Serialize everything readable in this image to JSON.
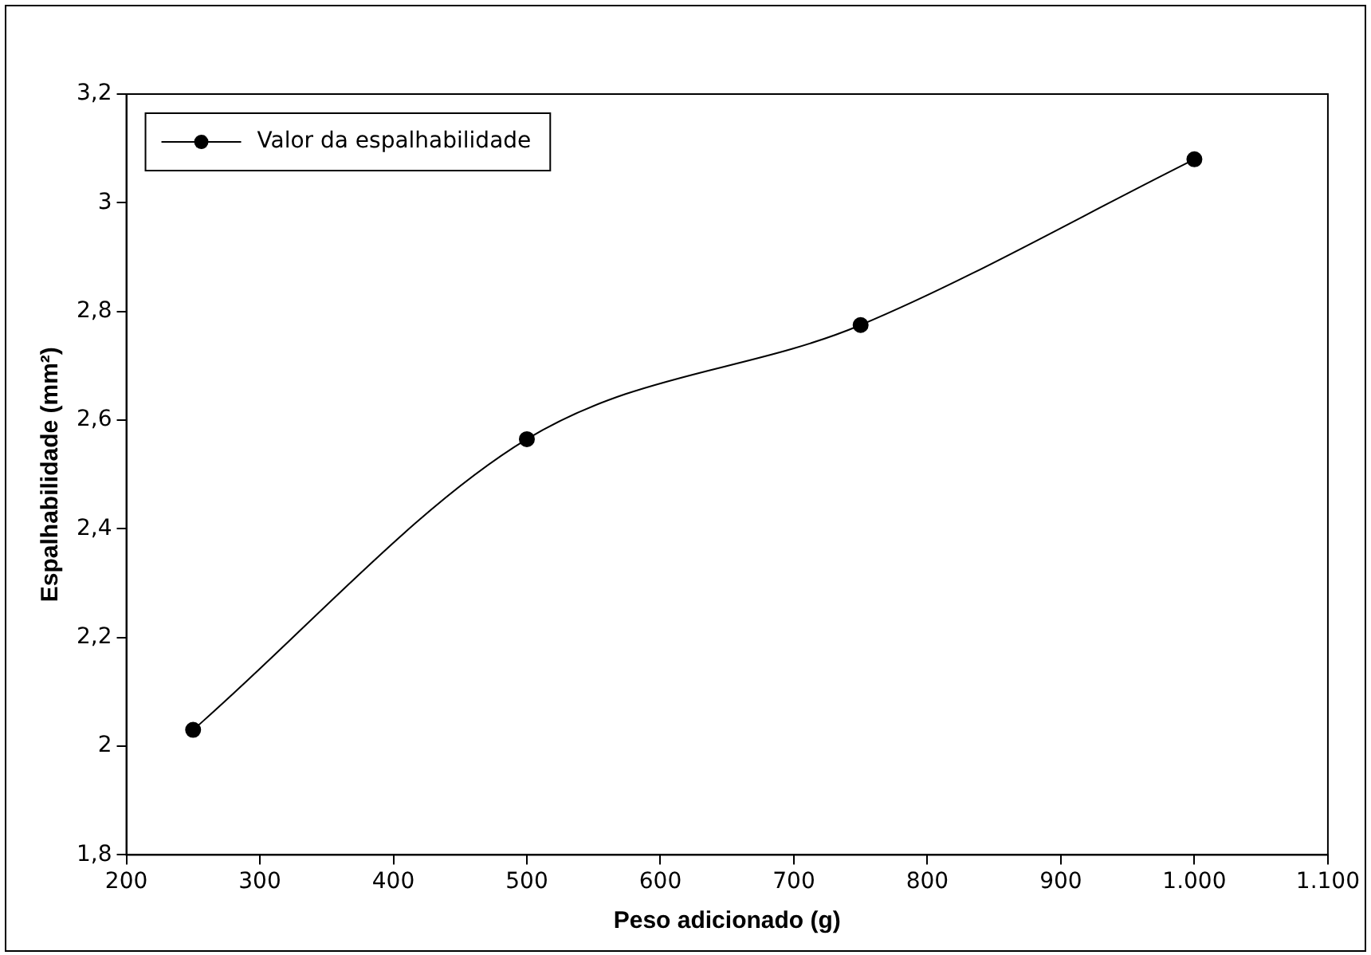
{
  "chart_data": {
    "type": "line",
    "xlabel": "Peso adicionado (g)",
    "ylabel": "Espalhabilidade (mm²)",
    "x": [
      250,
      500,
      750,
      1000
    ],
    "series": [
      {
        "name": "Valor da espalhabilidade",
        "color": "#000000",
        "values": [
          2.03,
          2.565,
          2.775,
          3.08
        ]
      }
    ],
    "xlim": [
      200,
      1100
    ],
    "xticks": [
      200,
      300,
      400,
      500,
      600,
      700,
      800,
      900,
      {
        "value": 1000,
        "label": "1.000"
      },
      {
        "value": 1100,
        "label": "1.100"
      }
    ],
    "ylim": [
      1.8,
      3.2
    ],
    "yticks": [
      {
        "value": 1.8,
        "label": "1,8"
      },
      2,
      {
        "value": 2.2,
        "label": "2,2"
      },
      {
        "value": 2.4,
        "label": "2,4"
      },
      {
        "value": 2.6,
        "label": "2,6"
      },
      {
        "value": 2.8,
        "label": "2,8"
      },
      3,
      {
        "value": 3.2,
        "label": "3,2"
      }
    ],
    "grid": false,
    "legend": "top left",
    "marker": "circle",
    "line_style": "solid"
  }
}
